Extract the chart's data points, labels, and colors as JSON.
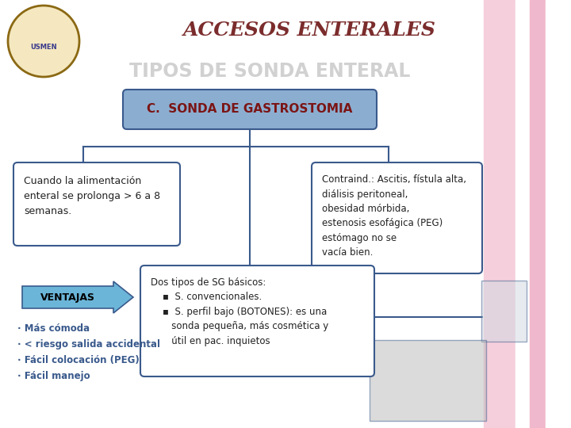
{
  "title": "ACCESOS ENTERALES",
  "subtitle": "TIPOS DE SONDA ENTERAL",
  "main_box_text": "C.  SONDA DE GASTROSTOMIA",
  "left_box_text": "Cuando la alimentación\nenteral se prolonga > 6 a 8\nsemanas.",
  "right_box_text": "Contraind.: Ascitis, fístula alta,\ndiálisis peritoneal,\nobesidad mórbida,\nestenosis esofágica (PEG)\nestómago no se\nvacía bien.",
  "bottom_box_text": "Dos tipos de SG básicos:\n    ▪  S. convencionales.\n    ▪  S. perfil bajo (BOTONES): es una\n       sonda pequeña, más cosmética y\n       útil en pac. inquietos",
  "ventajas_text": "VENTAJAS",
  "bullet_text": "· Más cómoda\n· < riesgo salida accidental\n· Fácil colocación (PEG)\n· Fácil manejo",
  "bg_color": "#FFFFFF",
  "title_color": "#7B2C2C",
  "subtitle_color": "#BEBEBE",
  "main_box_fill": "#8BAED0",
  "main_box_edge": "#3A5A8C",
  "left_box_fill": "#FFFFFF",
  "left_box_edge": "#3A5A8C",
  "right_box_fill": "#FFFFFF",
  "right_box_edge": "#3A5A8C",
  "bottom_box_fill": "#FFFFFF",
  "bottom_box_edge": "#3A5A8C",
  "line_color": "#3A5A8C",
  "ventajas_fill": "#6BB5D8",
  "ventajas_edge": "#3A5A8C",
  "ventajas_text_color": "#000000",
  "bullet_color": "#3A5A8C",
  "text_color": "#222222",
  "pink_light": "#F5D0DC",
  "pink_mid": "#F0B8CC",
  "pink_dark": "#F08AB0",
  "white_stripe": "#FFFFFF",
  "img_placeholder_color": "#D0D8E0"
}
